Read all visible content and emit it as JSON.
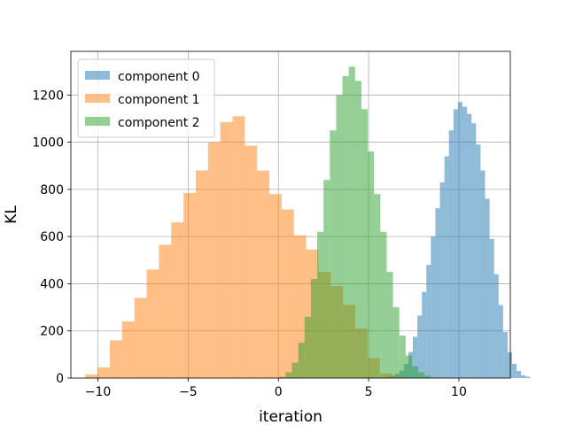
{
  "chart_data": {
    "type": "histogram",
    "xlabel": "iteration",
    "ylabel": "KL",
    "xlim": [
      -11.5,
      12.85
    ],
    "ylim": [
      0,
      1385
    ],
    "xticks": [
      -10,
      -5,
      0,
      5,
      10
    ],
    "xtick_labels": [
      "−10",
      "−5",
      "0",
      "5",
      "10"
    ],
    "yticks": [
      0,
      200,
      400,
      600,
      800,
      1000,
      1200
    ],
    "ytick_labels": [
      "0",
      "200",
      "400",
      "600",
      "800",
      "1000",
      "1200"
    ],
    "grid": true,
    "legend_position": "upper-left",
    "series": [
      {
        "name": "component 0",
        "color": "#1f77b4",
        "bin_start": 5.7,
        "bin_width": 0.25,
        "values": [
          3,
          5,
          10,
          18,
          32,
          60,
          110,
          175,
          265,
          365,
          480,
          600,
          720,
          830,
          940,
          1050,
          1140,
          1170,
          1150,
          1120,
          1080,
          990,
          880,
          760,
          590,
          440,
          310,
          195,
          110,
          60,
          30,
          12,
          6
        ]
      },
      {
        "name": "component 1",
        "color": "#ff7f0e",
        "bin_start": -10.7,
        "bin_width": 0.68,
        "values": [
          15,
          45,
          160,
          240,
          340,
          460,
          565,
          660,
          785,
          880,
          1000,
          1085,
          1110,
          985,
          880,
          780,
          715,
          605,
          545,
          450,
          390,
          310,
          210,
          85,
          20,
          5
        ]
      },
      {
        "name": "component 2",
        "color": "#2ca02c",
        "bin_start": 0.05,
        "bin_width": 0.35,
        "values": [
          5,
          25,
          65,
          150,
          260,
          420,
          620,
          840,
          1050,
          1200,
          1280,
          1320,
          1260,
          1140,
          960,
          780,
          620,
          450,
          300,
          180,
          95,
          50,
          25,
          10
        ]
      }
    ]
  }
}
